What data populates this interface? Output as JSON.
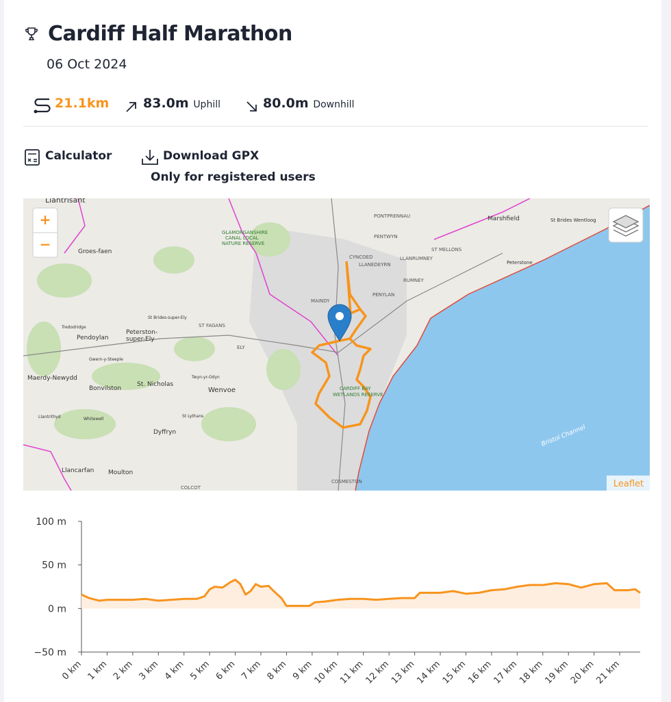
{
  "header": {
    "title": "Cardiff Half Marathon",
    "date": "06 Oct 2024"
  },
  "stats": {
    "distance": "21.1km",
    "uphill": "83.0m",
    "uphill_label": "Uphill",
    "downhill": "80.0m",
    "downhill_label": "Downhill"
  },
  "actions": {
    "calculator": "Calculator",
    "download": "Download GPX",
    "download_note": "Only for registered users"
  },
  "map": {
    "zoom_in": "+",
    "zoom_out": "−",
    "attribution": "Leaflet",
    "labels": [
      "Llantrisant",
      "Groes-faen",
      "GLAMORGANSHIRE",
      "CANAL LOCAL",
      "NATURE RESERVE",
      "PONTPRENNAU",
      "PENTWYN",
      "Marshfield",
      "St Brides Wentloog",
      "CYNCOED",
      "LLANEDEYRN",
      "ST MELLONS",
      "LLANRUMNEY",
      "Peterstone",
      "RUMNEY",
      "PENYLAN",
      "MAINDY",
      "ST FAGANS",
      "St Brides-super-Ely",
      "Tredodridge",
      "Pendoylan",
      "Peterston-",
      "super-Ely",
      "ELY",
      "Maerdy-Newydd",
      "Bonvilston",
      "St. Nicholas",
      "Gwern-y-Steeple",
      "Twyn-yr-Odyn",
      "Wenvoe",
      "St Lythans",
      "Dyffryn",
      "Llantrithyd",
      "Whitewell",
      "Llancarfan",
      "Moulton",
      "COLCOT",
      "COSMESTON",
      "CARDIFF BAY",
      "WETLANDS RESERVE",
      "Bristol Channel"
    ]
  },
  "chart_data": {
    "type": "line",
    "x": [
      0,
      0.3,
      0.7,
      1,
      1.5,
      2,
      2.5,
      3,
      3.5,
      4,
      4.5,
      4.8,
      5,
      5.2,
      5.5,
      5.8,
      6,
      6.2,
      6.4,
      6.6,
      6.8,
      7,
      7.3,
      7.5,
      7.8,
      8,
      8.5,
      8.9,
      9.1,
      9.5,
      10,
      10.5,
      11,
      11.5,
      12,
      12.5,
      13,
      13.2,
      13.5,
      14,
      14.5,
      15,
      15.5,
      16,
      16.5,
      17,
      17.5,
      18,
      18.5,
      19,
      19.5,
      20,
      20.5,
      20.8,
      21.3,
      21.6,
      21.8
    ],
    "values": [
      16,
      12,
      9,
      10,
      10,
      10,
      11,
      9,
      10,
      11,
      11,
      14,
      22,
      25,
      24,
      30,
      33,
      28,
      16,
      20,
      28,
      25,
      26,
      20,
      12,
      3,
      3,
      3,
      7,
      8,
      10,
      11,
      11,
      10,
      11,
      12,
      12,
      18,
      18,
      18,
      20,
      17,
      18,
      21,
      22,
      25,
      27,
      27,
      29,
      28,
      24,
      28,
      29,
      21,
      21,
      22,
      18
    ],
    "color": "#f7941d",
    "fill_color": "#fdeee0",
    "xlim": [
      0,
      21.8
    ],
    "ylim": [
      -50,
      100
    ],
    "xticks": [
      {
        "value": 0,
        "label": "0 km"
      },
      {
        "value": 1,
        "label": "1 km"
      },
      {
        "value": 2,
        "label": "2 km"
      },
      {
        "value": 3,
        "label": "3 km"
      },
      {
        "value": 4,
        "label": "4 km"
      },
      {
        "value": 5,
        "label": "5 km"
      },
      {
        "value": 6,
        "label": "6 km"
      },
      {
        "value": 7,
        "label": "7 km"
      },
      {
        "value": 8,
        "label": "8 km"
      },
      {
        "value": 9,
        "label": "9 km"
      },
      {
        "value": 10,
        "label": "10 km"
      },
      {
        "value": 11,
        "label": "11 km"
      },
      {
        "value": 12,
        "label": "12 km"
      },
      {
        "value": 13,
        "label": "13 km"
      },
      {
        "value": 14,
        "label": "14 km"
      },
      {
        "value": 15,
        "label": "15 km"
      },
      {
        "value": 16,
        "label": "16 km"
      },
      {
        "value": 17,
        "label": "17 km"
      },
      {
        "value": 18,
        "label": "18 km"
      },
      {
        "value": 19,
        "label": "19 km"
      },
      {
        "value": 20,
        "label": "20 km"
      },
      {
        "value": 21,
        "label": "21 km"
      }
    ],
    "yticks": [
      {
        "value": 100,
        "label": "100 m"
      },
      {
        "value": 50,
        "label": "50 m"
      },
      {
        "value": 0,
        "label": "0 m"
      },
      {
        "value": -50,
        "label": "−50 m"
      }
    ],
    "grid": false
  }
}
